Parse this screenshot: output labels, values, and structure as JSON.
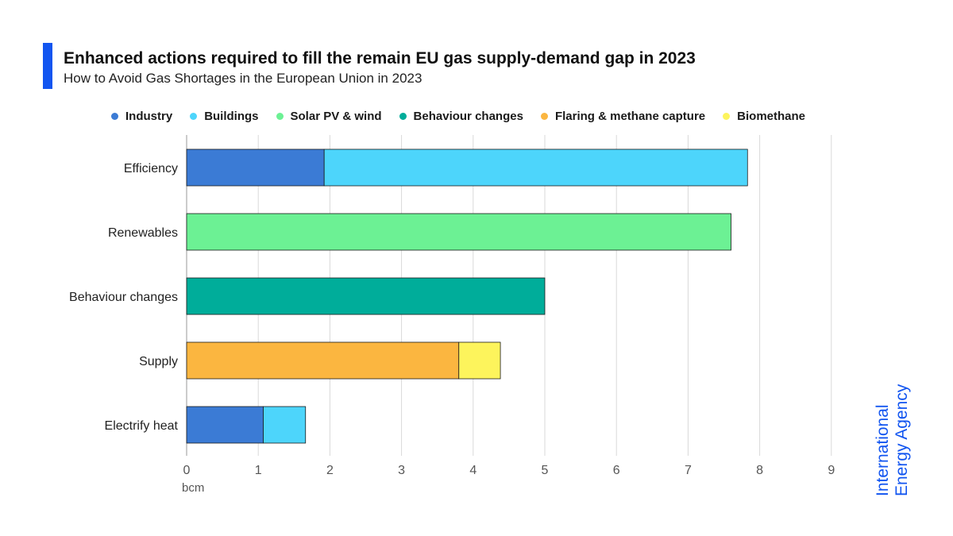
{
  "header": {
    "title": "Enhanced actions required to fill the remain EU gas supply-demand gap in 2023",
    "subtitle": "How to Avoid Gas Shortages in the European Union in 2023"
  },
  "brand": {
    "line1": "International",
    "line2": "Energy Agency",
    "accent_color": "#1255f0"
  },
  "chart_data": {
    "type": "bar",
    "orientation": "horizontal",
    "stacked": true,
    "categories": [
      "Efficiency",
      "Renewables",
      "Behaviour changes",
      "Supply",
      "Electrify heat"
    ],
    "series": [
      {
        "name": "Industry",
        "color": "#3b7bd5",
        "values": [
          1.92,
          0,
          0,
          0,
          1.07
        ]
      },
      {
        "name": "Buildings",
        "color": "#4dd5fb",
        "values": [
          5.91,
          0,
          0,
          0,
          0.59
        ]
      },
      {
        "name": "Solar PV & wind",
        "color": "#6cf194",
        "values": [
          0,
          7.6,
          0,
          0,
          0
        ]
      },
      {
        "name": "Behaviour changes",
        "color": "#00ad9a",
        "values": [
          0,
          0,
          5.0,
          0,
          0
        ]
      },
      {
        "name": "Flaring & methane capture",
        "color": "#fbb640",
        "values": [
          0,
          0,
          0,
          3.8,
          0
        ]
      },
      {
        "name": "Biomethane",
        "color": "#fdf45c",
        "values": [
          0,
          0,
          0,
          0.58,
          0
        ]
      }
    ],
    "x_ticks": [
      "0",
      "1",
      "2",
      "3",
      "4",
      "5",
      "6",
      "7",
      "8",
      "9"
    ],
    "xlim": [
      0,
      9
    ],
    "xlabel": "bcm",
    "ylabel": "",
    "grid": "vertical",
    "legend_position": "top"
  }
}
